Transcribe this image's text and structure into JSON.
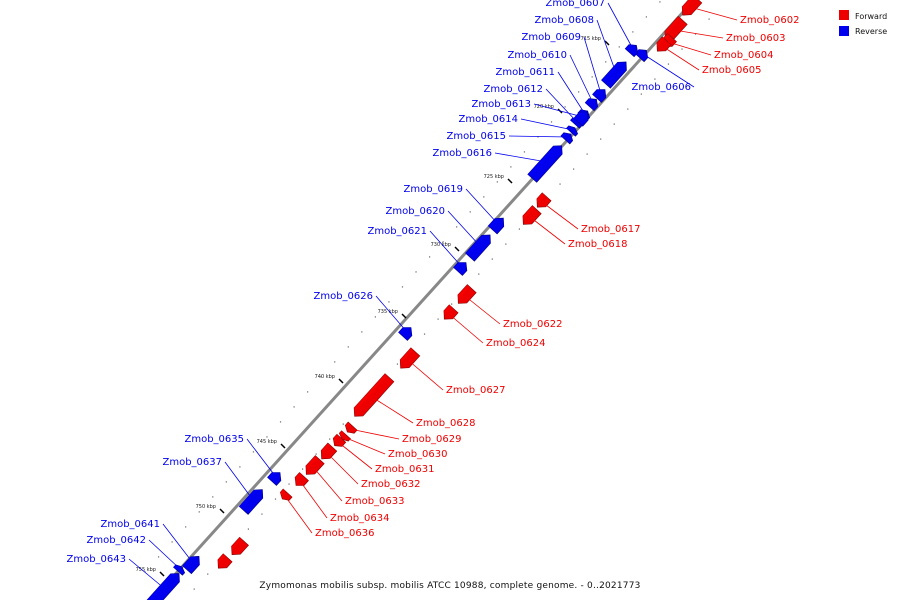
{
  "caption": "Zymomonas mobilis subsp. mobilis ATCC 10988, complete genome. - 0..2021773",
  "legend": [
    {
      "label": "Forward",
      "color": "#ee0000"
    },
    {
      "label": "Reverse",
      "color": "#0000ee"
    }
  ],
  "colors": {
    "forward": "#ee0000",
    "reverse": "#0000ee",
    "backbone": "#888888"
  },
  "ticks": [
    "715 kbp",
    "720 kbp",
    "725 kbp",
    "730 kbp",
    "735 kbp",
    "740 kbp",
    "745 kbp",
    "750 kbp",
    "755 kbp"
  ],
  "genes": [
    {
      "name": "Zmob_0602",
      "strand": "forward"
    },
    {
      "name": "Zmob_0603",
      "strand": "forward"
    },
    {
      "name": "Zmob_0604",
      "strand": "forward"
    },
    {
      "name": "Zmob_0605",
      "strand": "forward"
    },
    {
      "name": "Zmob_0606",
      "strand": "reverse"
    },
    {
      "name": "Zmob_0607",
      "strand": "reverse"
    },
    {
      "name": "Zmob_0608",
      "strand": "reverse"
    },
    {
      "name": "Zmob_0609",
      "strand": "reverse"
    },
    {
      "name": "Zmob_0610",
      "strand": "reverse"
    },
    {
      "name": "Zmob_0611",
      "strand": "reverse"
    },
    {
      "name": "Zmob_0612",
      "strand": "reverse"
    },
    {
      "name": "Zmob_0613",
      "strand": "reverse"
    },
    {
      "name": "Zmob_0614",
      "strand": "reverse"
    },
    {
      "name": "Zmob_0615",
      "strand": "reverse"
    },
    {
      "name": "Zmob_0616",
      "strand": "reverse"
    },
    {
      "name": "Zmob_0617",
      "strand": "forward"
    },
    {
      "name": "Zmob_0618",
      "strand": "forward"
    },
    {
      "name": "Zmob_0619",
      "strand": "reverse"
    },
    {
      "name": "Zmob_0620",
      "strand": "reverse"
    },
    {
      "name": "Zmob_0621",
      "strand": "reverse"
    },
    {
      "name": "Zmob_0622",
      "strand": "forward"
    },
    {
      "name": "Zmob_0624",
      "strand": "forward"
    },
    {
      "name": "Zmob_0626",
      "strand": "reverse"
    },
    {
      "name": "Zmob_0627",
      "strand": "forward"
    },
    {
      "name": "Zmob_0628",
      "strand": "forward"
    },
    {
      "name": "Zmob_0629",
      "strand": "forward"
    },
    {
      "name": "Zmob_0630",
      "strand": "forward"
    },
    {
      "name": "Zmob_0631",
      "strand": "forward"
    },
    {
      "name": "Zmob_0632",
      "strand": "forward"
    },
    {
      "name": "Zmob_0633",
      "strand": "forward"
    },
    {
      "name": "Zmob_0634",
      "strand": "forward"
    },
    {
      "name": "Zmob_0635",
      "strand": "reverse"
    },
    {
      "name": "Zmob_0636",
      "strand": "forward"
    },
    {
      "name": "Zmob_0637",
      "strand": "reverse"
    },
    {
      "name": "Zmob_0641",
      "strand": "reverse"
    },
    {
      "name": "Zmob_0642",
      "strand": "reverse"
    },
    {
      "name": "Zmob_0643",
      "strand": "reverse"
    }
  ]
}
